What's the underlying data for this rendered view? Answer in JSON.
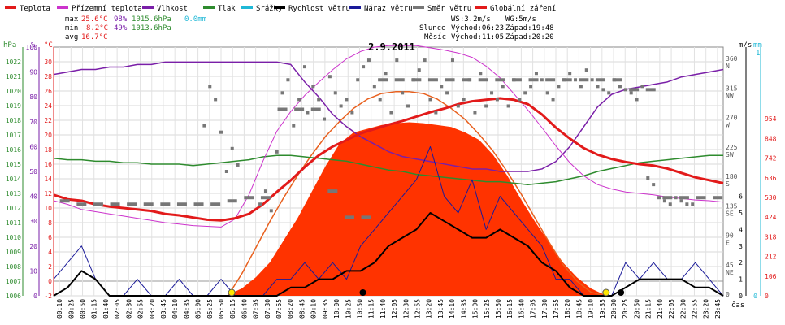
{
  "legend": [
    {
      "label": "Teplota",
      "color": "#e21a1a"
    },
    {
      "label": "Přízemní teplota",
      "color": "#cc33cc"
    },
    {
      "label": "Vlhkost",
      "color": "#7a1fa8"
    },
    {
      "label": "Tlak",
      "color": "#2e8b2e"
    },
    {
      "label": "Srážky",
      "color": "#1fb8d6"
    },
    {
      "label": "Rychlost větru",
      "color": "#000000"
    },
    {
      "label": "Náraz větru",
      "color": "#1a1a99"
    },
    {
      "label": "Směr větru",
      "color": "#777777"
    },
    {
      "label": "Globální záření",
      "color": "#e21a1a"
    }
  ],
  "stats": {
    "max": {
      "label": "max",
      "temp": "25.6°C",
      "hum": "98%",
      "press": "1015.6hPa",
      "rain": "0.0mm"
    },
    "min": {
      "label": "min",
      "temp": "8.2°C",
      "hum": "49%",
      "press": "1013.6hPa"
    },
    "avg": {
      "label": "avg",
      "temp": "16.7°C"
    }
  },
  "wind_info": {
    "ws": "WS:3.2m/s",
    "wg": "WG:5m/s"
  },
  "sun": {
    "label": "Slunce",
    "rise": "Východ:06:23",
    "set": "Západ:19:48"
  },
  "moon": {
    "label": "Měsíc",
    "rise": "Východ:11:05",
    "set": "Západ:20:20"
  },
  "date": "2.9.2011",
  "axis_units": {
    "press": "hPa",
    "hum": "%",
    "temp": "°C",
    "wind": "m/s",
    "rain": "mm",
    "rain_max": "1",
    "time": "čas"
  },
  "chart_data": {
    "type": "line",
    "x_unit": "hour of day",
    "xlim": [
      0,
      24
    ],
    "axes": {
      "temp": {
        "range": [
          -2,
          32
        ],
        "ticks": [
          -2,
          0,
          2,
          4,
          6,
          8,
          10,
          12,
          14,
          16,
          18,
          20,
          22,
          24,
          26,
          28,
          30
        ]
      },
      "hum": {
        "range": [
          0,
          100
        ],
        "ticks": [
          0,
          10,
          20,
          30,
          40,
          50,
          60,
          70,
          80,
          90,
          100
        ]
      },
      "press": {
        "range": [
          1006,
          1023
        ],
        "ticks": [
          1006,
          1007,
          1008,
          1009,
          1010,
          1011,
          1012,
          1013,
          1014,
          1015,
          1016,
          1017,
          1018,
          1019,
          1020,
          1021,
          1022
        ]
      },
      "dir": {
        "range": [
          0,
          380
        ],
        "ticks": [
          {
            "v": 0,
            "l": "0"
          },
          {
            "v": 45,
            "l": "45",
            "d": "NE"
          },
          {
            "v": 90,
            "l": "90",
            "d": "E"
          },
          {
            "v": 135,
            "l": "135",
            "d": "SE"
          },
          {
            "v": 180,
            "l": "180",
            "d": "S"
          },
          {
            "v": 225,
            "l": "225",
            "d": "SW"
          },
          {
            "v": 270,
            "l": "270",
            "d": "W"
          },
          {
            "v": 315,
            "l": "315",
            "d": "NW"
          },
          {
            "v": 360,
            "l": "360",
            "d": "N"
          }
        ]
      },
      "wind": {
        "range": [
          0,
          15
        ],
        "ticks": [
          0,
          1,
          2,
          3,
          4,
          5,
          6
        ]
      },
      "rad": {
        "range": [
          0,
          1340
        ],
        "ticks": [
          0,
          106,
          212,
          318,
          424,
          530,
          636,
          742,
          848,
          954
        ]
      },
      "rain_max": 1
    },
    "x_labels": [
      "00:10",
      "00:25",
      "00:50",
      "01:15",
      "01:40",
      "02:05",
      "02:30",
      "02:55",
      "03:20",
      "03:45",
      "04:10",
      "04:35",
      "05:00",
      "05:25",
      "05:50",
      "06:15",
      "06:40",
      "07:05",
      "07:30",
      "07:55",
      "08:20",
      "08:45",
      "09:10",
      "09:35",
      "10:00",
      "10:25",
      "10:50",
      "11:15",
      "11:40",
      "12:05",
      "12:30",
      "12:55",
      "13:20",
      "13:45",
      "14:10",
      "14:35",
      "15:00",
      "15:25",
      "15:50",
      "16:15",
      "16:40",
      "17:05",
      "17:30",
      "17:55",
      "18:20",
      "18:45",
      "19:10",
      "19:35",
      "20:00",
      "20:25",
      "20:50",
      "21:15",
      "21:40",
      "22:05",
      "22:30",
      "22:55",
      "23:20",
      "23:45"
    ],
    "temperature": {
      "x": [
        0,
        0.5,
        1,
        1.5,
        2,
        2.5,
        3,
        3.5,
        4,
        4.5,
        5,
        5.5,
        6,
        6.5,
        7,
        7.5,
        8,
        8.5,
        9,
        9.5,
        10,
        10.5,
        11,
        11.5,
        12,
        12.5,
        13,
        13.5,
        14,
        14.5,
        15,
        15.5,
        16,
        16.5,
        17,
        17.5,
        18,
        18.5,
        19,
        19.5,
        20,
        20.5,
        21,
        21.5,
        22,
        22.5,
        23,
        23.5,
        24
      ],
      "y": [
        11.8,
        11.2,
        11,
        10.5,
        10.2,
        10,
        9.8,
        9.6,
        9.2,
        9,
        8.7,
        8.4,
        8.3,
        8.6,
        9.2,
        10.5,
        12.2,
        13.8,
        15.6,
        17.2,
        18.4,
        19.3,
        20.2,
        20.8,
        21.4,
        21.9,
        22.5,
        23.1,
        23.6,
        24.2,
        24.6,
        24.8,
        25,
        24.8,
        24.2,
        22.8,
        21,
        19.5,
        18.2,
        17.3,
        16.7,
        16.3,
        16,
        15.8,
        15.4,
        14.8,
        14.2,
        13.8,
        13.4
      ]
    },
    "ground_temperature": {
      "x": [
        0,
        0.5,
        1,
        1.5,
        2,
        2.5,
        3,
        3.5,
        4,
        4.5,
        5,
        5.5,
        6,
        6.5,
        7,
        7.5,
        8,
        8.5,
        9,
        9.5,
        10,
        10.5,
        11,
        11.5,
        12,
        12.5,
        13,
        13.5,
        14,
        14.5,
        15,
        15.5,
        16,
        16.5,
        17,
        17.5,
        18,
        18.5,
        19,
        19.5,
        20,
        20.5,
        21,
        21.5,
        22,
        22.5,
        23,
        23.5,
        24
      ],
      "y": [
        11,
        10.5,
        9.8,
        9.5,
        9.2,
        8.9,
        8.6,
        8.3,
        8,
        7.8,
        7.6,
        7.5,
        7.4,
        8.5,
        11.8,
        16.4,
        20.5,
        23.2,
        25.4,
        27.2,
        28.9,
        30.4,
        31.4,
        32,
        32.2,
        32.2,
        32.2,
        31.9,
        31.6,
        31.2,
        30.6,
        29.4,
        27.8,
        25.6,
        23.4,
        21,
        18.5,
        16.2,
        14.4,
        13.2,
        12.6,
        12.2,
        12,
        11.8,
        11.5,
        11.3,
        11.1,
        11,
        10.8
      ]
    },
    "humidity": {
      "x": [
        0,
        0.5,
        1,
        1.5,
        2,
        2.5,
        3,
        3.5,
        4,
        4.5,
        5,
        5.5,
        6,
        6.5,
        7,
        7.5,
        8,
        8.5,
        9,
        9.5,
        10,
        10.5,
        11,
        11.5,
        12,
        12.5,
        13,
        13.5,
        14,
        14.5,
        15,
        15.5,
        16,
        16.5,
        17,
        17.5,
        18,
        18.5,
        19,
        19.5,
        20,
        20.5,
        21,
        21.5,
        22,
        22.5,
        23,
        23.5,
        24
      ],
      "y": [
        89,
        90,
        91,
        91,
        92,
        92,
        93,
        93,
        94,
        94,
        94,
        94,
        94,
        94,
        94,
        94,
        94,
        93,
        86,
        80,
        73,
        68,
        64,
        61,
        58,
        56,
        55,
        54,
        53,
        52,
        51,
        51,
        50,
        50,
        50,
        51,
        54,
        60,
        68,
        76,
        81,
        83,
        84,
        85,
        86,
        88,
        89,
        90,
        91
      ]
    },
    "pressure": {
      "x": [
        0,
        0.5,
        1,
        1.5,
        2,
        2.5,
        3,
        3.5,
        4,
        4.5,
        5,
        5.5,
        6,
        6.5,
        7,
        7.5,
        8,
        8.5,
        9,
        9.5,
        10,
        10.5,
        11,
        11.5,
        12,
        12.5,
        13,
        13.5,
        14,
        14.5,
        15,
        15.5,
        16,
        16.5,
        17,
        17.5,
        18,
        18.5,
        19,
        19.5,
        20,
        20.5,
        21,
        21.5,
        22,
        22.5,
        23,
        23.5,
        24
      ],
      "y": [
        1015.4,
        1015.3,
        1015.3,
        1015.2,
        1015.2,
        1015.1,
        1015.1,
        1015,
        1015,
        1015,
        1014.9,
        1015,
        1015.1,
        1015.2,
        1015.3,
        1015.5,
        1015.6,
        1015.6,
        1015.5,
        1015.4,
        1015.3,
        1015.2,
        1015,
        1014.8,
        1014.6,
        1014.5,
        1014.3,
        1014.2,
        1014.1,
        1014,
        1013.9,
        1013.8,
        1013.8,
        1013.7,
        1013.6,
        1013.7,
        1013.8,
        1014,
        1014.2,
        1014.5,
        1014.7,
        1014.9,
        1015.1,
        1015.2,
        1015.3,
        1015.4,
        1015.5,
        1015.6,
        1015.6
      ]
    },
    "wind_speed": {
      "x": [
        0,
        0.5,
        1,
        1.5,
        2,
        2.5,
        3,
        3.5,
        4,
        4.5,
        5,
        5.5,
        6,
        6.5,
        7,
        7.5,
        8,
        8.5,
        9,
        9.5,
        10,
        10.5,
        11,
        11.5,
        12,
        12.5,
        13,
        13.5,
        14,
        14.5,
        15,
        15.5,
        16,
        16.5,
        17,
        17.5,
        18,
        18.5,
        19,
        19.5,
        20,
        20.5,
        21,
        21.5,
        22,
        22.5,
        23,
        23.5,
        24
      ],
      "y": [
        0,
        0.5,
        1.5,
        1,
        0,
        0,
        0,
        0,
        0,
        0,
        0,
        0,
        0,
        0,
        0,
        0,
        0,
        0.5,
        0.5,
        1,
        1,
        1.5,
        1.5,
        2,
        3,
        3.5,
        4,
        5,
        4.5,
        4,
        3.5,
        3.5,
        4,
        3.5,
        3,
        2,
        1.5,
        0.5,
        0,
        0,
        0,
        0.5,
        1,
        1,
        1,
        1,
        0.5,
        0.5,
        0
      ]
    },
    "wind_gust": {
      "x": [
        0,
        0.5,
        1,
        1.5,
        2,
        2.5,
        3,
        3.5,
        4,
        4.5,
        5,
        5.5,
        6,
        6.5,
        7,
        7.5,
        8,
        8.5,
        9,
        9.5,
        10,
        10.5,
        11,
        11.5,
        12,
        12.5,
        13,
        13.5,
        14,
        14.5,
        15,
        15.5,
        16,
        16.5,
        17,
        17.5,
        18,
        18.5,
        19,
        19.5,
        20,
        20.5,
        21,
        21.5,
        22,
        22.5,
        23,
        23.5,
        24
      ],
      "y": [
        1,
        2,
        3,
        1,
        0,
        0,
        1,
        0,
        0,
        1,
        0,
        0,
        1,
        0,
        0,
        0,
        1,
        1,
        2,
        1,
        2,
        1,
        3,
        4,
        5,
        6,
        7,
        9,
        6,
        5,
        7,
        4,
        6,
        5,
        4,
        3,
        1,
        1,
        0,
        0,
        0,
        2,
        1,
        2,
        1,
        1,
        2,
        1,
        0
      ]
    },
    "wind_direction": {
      "x": [
        5.4,
        5.6,
        5.8,
        6,
        6.2,
        6.4,
        6.6,
        7.4,
        7.6,
        7.8,
        8,
        8.2,
        8.4,
        8.6,
        8.8,
        9,
        9.1,
        9.3,
        9.5,
        9.7,
        9.9,
        10.1,
        10.3,
        10.5,
        10.7,
        10.9,
        11.1,
        11.3,
        11.5,
        11.7,
        11.9,
        12.1,
        12.3,
        12.5,
        12.7,
        12.9,
        13.1,
        13.3,
        13.5,
        13.7,
        13.9,
        14.1,
        14.3,
        14.5,
        14.7,
        14.9,
        15.1,
        15.3,
        15.5,
        15.7,
        15.9,
        16.1,
        16.3,
        16.5,
        16.7,
        16.9,
        17.1,
        17.3,
        17.5,
        17.7,
        17.9,
        18.1,
        18.3,
        18.5,
        18.7,
        18.9,
        19.1,
        19.3,
        19.5,
        19.7,
        19.9,
        20.1,
        20.3,
        20.5,
        20.7,
        20.9,
        21.1,
        21.3,
        21.5,
        21.7,
        21.9,
        22.1,
        22.3,
        22.5,
        22.7,
        22.9
      ],
      "y": [
        260,
        320,
        300,
        250,
        190,
        225,
        200,
        140,
        160,
        130,
        220,
        310,
        330,
        260,
        300,
        350,
        280,
        320,
        300,
        270,
        335,
        310,
        290,
        300,
        280,
        330,
        350,
        360,
        320,
        300,
        340,
        280,
        360,
        310,
        290,
        330,
        345,
        360,
        300,
        280,
        320,
        310,
        360,
        290,
        300,
        330,
        280,
        340,
        290,
        310,
        300,
        320,
        290,
        330,
        300,
        310,
        320,
        340,
        330,
        310,
        300,
        320,
        330,
        340,
        330,
        320,
        345,
        330,
        320,
        315,
        310,
        330,
        320,
        315,
        310,
        300,
        320,
        180,
        170,
        150,
        145,
        140,
        150,
        145,
        140,
        140
      ]
    },
    "wind_direction_avg": {
      "x": [
        0.4,
        1,
        1.6,
        2.2,
        2.8,
        3.4,
        4,
        4.6,
        5.2,
        5.8,
        6.4,
        7,
        7.6,
        8.2,
        8.8,
        9.4,
        10,
        10.6,
        11.2,
        11.8,
        12.4,
        13,
        13.6,
        14.2,
        14.8,
        15.4,
        16,
        16.6,
        17.2,
        17.8,
        18.4,
        19,
        19.6,
        20.2,
        20.8,
        21.4,
        22,
        22.6,
        23.2,
        23.8
      ],
      "y": [
        145,
        140,
        140,
        140,
        140,
        140,
        140,
        140,
        140,
        140,
        145,
        150,
        150,
        285,
        285,
        285,
        160,
        120,
        120,
        330,
        330,
        330,
        330,
        330,
        330,
        330,
        330,
        330,
        330,
        330,
        330,
        330,
        330,
        330,
        315,
        315,
        150,
        150,
        150,
        150
      ]
    },
    "solar_radiation": {
      "x": [
        6.25,
        6.75,
        7.25,
        7.75,
        8.25,
        8.75,
        9.25,
        9.75,
        10.25,
        10.75,
        11.25,
        11.75,
        12.25,
        12.75,
        13.25,
        13.75,
        14.25,
        14.75,
        15.25,
        15.75,
        16.25,
        16.75,
        17.25,
        17.75,
        18.25,
        18.75,
        19.25,
        19.75
      ],
      "y": [
        5,
        40,
        100,
        180,
        300,
        420,
        560,
        700,
        820,
        880,
        900,
        920,
        930,
        935,
        930,
        920,
        910,
        880,
        840,
        760,
        650,
        520,
        400,
        290,
        180,
        100,
        40,
        5
      ]
    },
    "solar_radiation_clear": {
      "x": [
        6.25,
        6.75,
        7.25,
        7.75,
        8.25,
        8.75,
        9.25,
        9.75,
        10.25,
        10.75,
        11.25,
        11.75,
        12.25,
        12.75,
        13.25,
        13.75,
        14.25,
        14.75,
        15.25,
        15.75,
        16.25,
        16.75,
        17.25,
        17.75,
        18.25,
        18.75,
        19.25,
        19.75
      ],
      "y": [
        0,
        120,
        260,
        400,
        530,
        650,
        760,
        860,
        940,
        1010,
        1060,
        1090,
        1100,
        1100,
        1090,
        1060,
        1010,
        950,
        870,
        780,
        670,
        550,
        420,
        290,
        170,
        80,
        20,
        0
      ]
    },
    "sun_events": [
      6.383,
      19.8
    ],
    "moon_events": [
      11.083,
      20.333
    ]
  }
}
